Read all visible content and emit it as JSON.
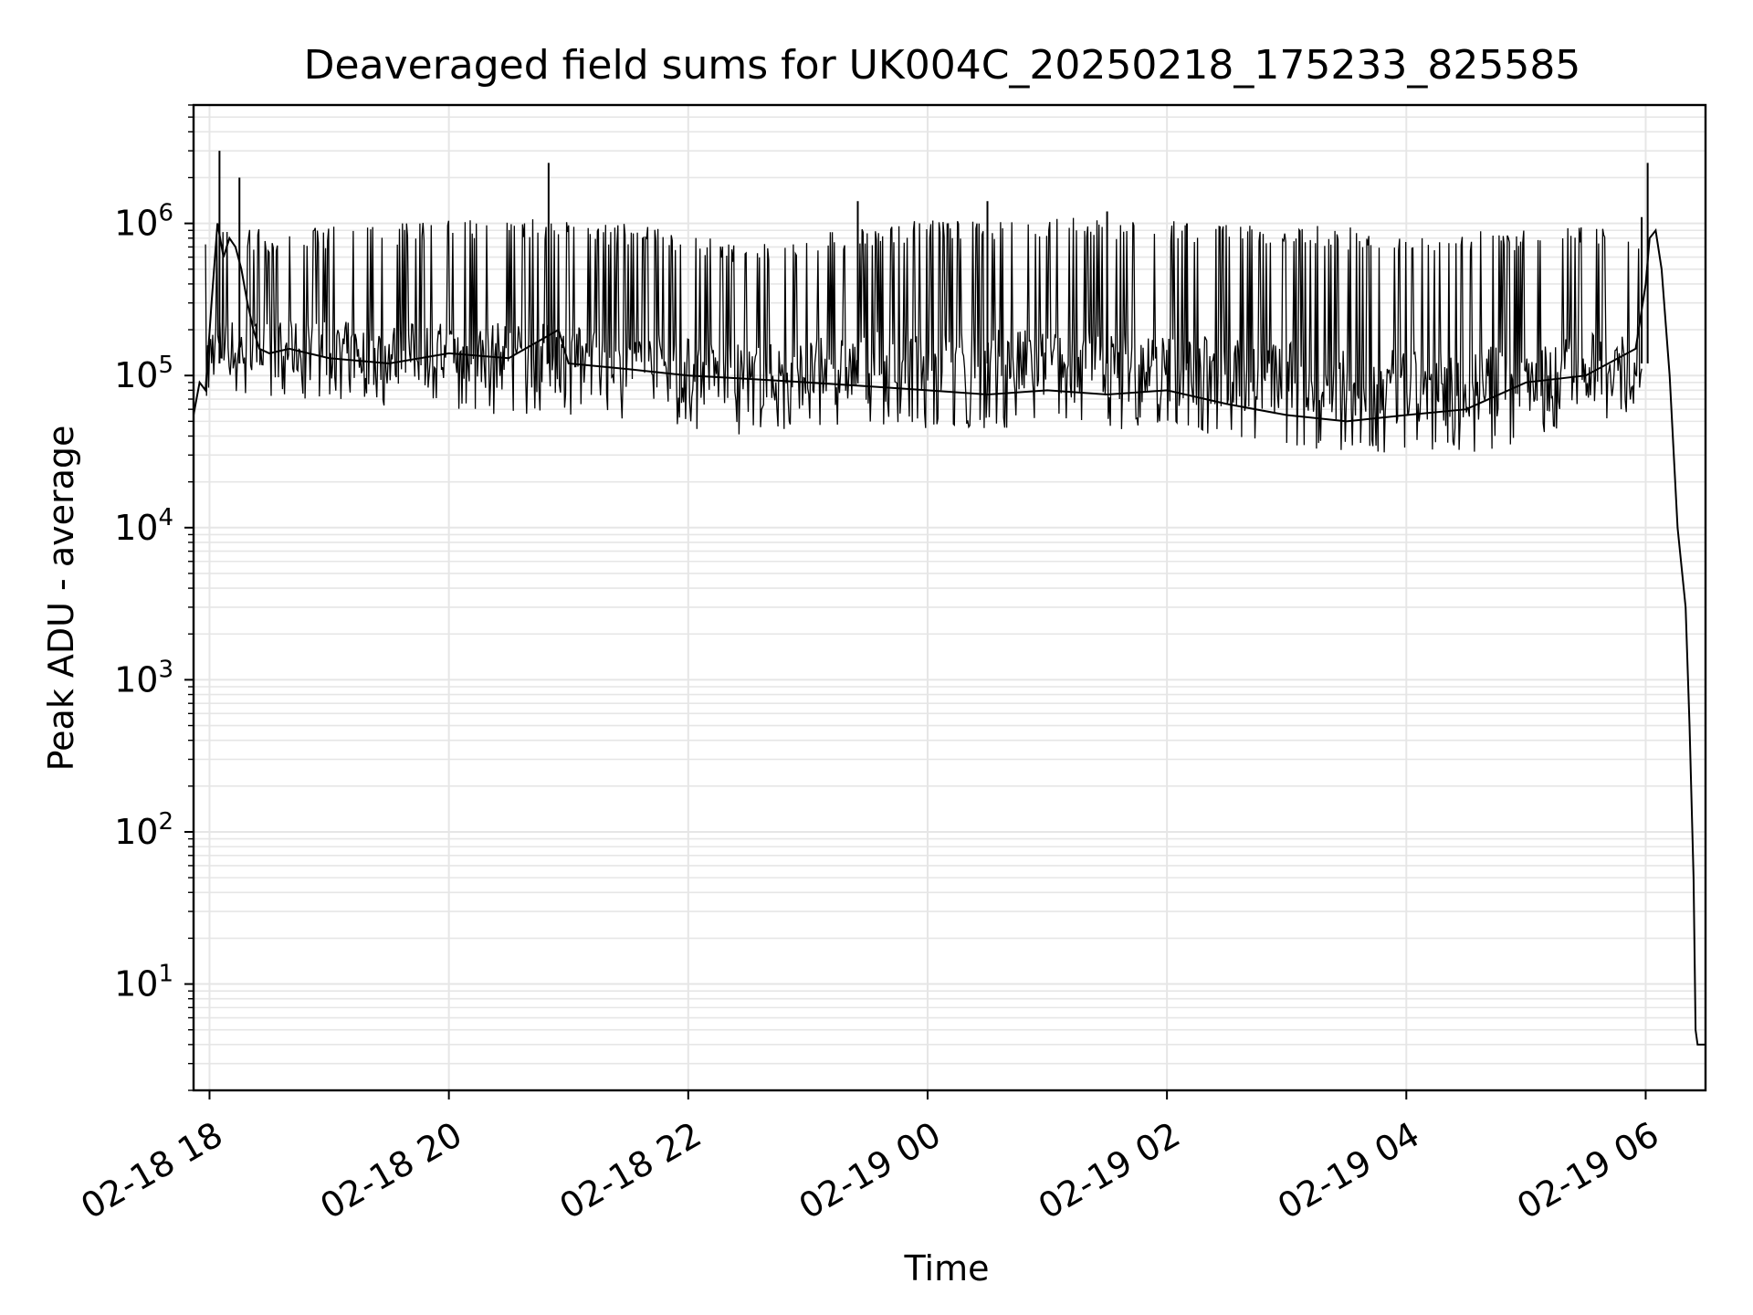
{
  "chart_data": {
    "type": "line",
    "title": "Deaveraged field sums for UK004C_20250218_175233_825585",
    "xlabel": "Time",
    "ylabel": "Peak ADU - average",
    "yscale": "log",
    "ylim": [
      2,
      6000000
    ],
    "xlim": [
      "2025-02-18T17:52",
      "2025-02-19T06:30"
    ],
    "x_ticks": [
      "02-18 18",
      "02-18 20",
      "02-18 22",
      "02-19 00",
      "02-19 02",
      "02-19 04",
      "02-19 06"
    ],
    "y_ticks": [
      {
        "base": "10",
        "exp": "1",
        "value": 10
      },
      {
        "base": "10",
        "exp": "2",
        "value": 100
      },
      {
        "base": "10",
        "exp": "3",
        "value": 1000
      },
      {
        "base": "10",
        "exp": "4",
        "value": 10000
      },
      {
        "base": "10",
        "exp": "5",
        "value": 100000
      },
      {
        "base": "10",
        "exp": "6",
        "value": 1000000
      }
    ],
    "grid": true,
    "line_color": "#000000",
    "grid_color": "#e6e6e6",
    "series": [
      {
        "x": [
          "2025-02-18T17:52",
          "2025-02-18T17:55",
          "2025-02-18T17:58",
          "2025-02-18T18:01",
          "2025-02-18T18:04",
          "2025-02-18T18:07",
          "2025-02-18T18:10",
          "2025-02-18T18:13",
          "2025-02-18T18:16",
          "2025-02-18T18:19",
          "2025-02-18T18:22",
          "2025-02-18T18:25",
          "2025-02-18T18:30",
          "2025-02-18T18:40",
          "2025-02-18T19:00",
          "2025-02-18T19:30",
          "2025-02-18T20:00",
          "2025-02-18T20:30",
          "2025-02-18T20:55",
          "2025-02-18T21:00",
          "2025-02-18T21:30",
          "2025-02-18T22:00",
          "2025-02-18T22:30",
          "2025-02-18T23:00",
          "2025-02-18T23:30",
          "2025-02-19T00:00",
          "2025-02-19T00:30",
          "2025-02-19T01:00",
          "2025-02-19T01:30",
          "2025-02-19T02:00",
          "2025-02-19T02:30",
          "2025-02-19T03:00",
          "2025-02-19T03:30",
          "2025-02-19T04:00",
          "2025-02-19T04:30",
          "2025-02-19T05:00",
          "2025-02-19T05:30",
          "2025-02-19T05:55",
          "2025-02-19T06:00",
          "2025-02-19T06:02",
          "2025-02-19T06:05",
          "2025-02-19T06:08",
          "2025-02-19T06:12",
          "2025-02-19T06:16",
          "2025-02-19T06:20",
          "2025-02-19T06:22",
          "2025-02-19T06:24",
          "2025-02-19T06:25",
          "2025-02-19T06:26",
          "2025-02-19T06:28",
          "2025-02-19T06:30"
        ],
        "y": [
          55000,
          90000,
          80000,
          300000,
          1000000,
          600000,
          800000,
          700000,
          500000,
          300000,
          200000,
          150000,
          140000,
          150000,
          130000,
          120000,
          140000,
          130000,
          200000,
          120000,
          110000,
          100000,
          95000,
          90000,
          85000,
          80000,
          75000,
          80000,
          75000,
          80000,
          65000,
          55000,
          50000,
          55000,
          60000,
          90000,
          100000,
          150000,
          400000,
          800000,
          900000,
          500000,
          100000,
          10000,
          3000,
          500,
          50,
          5,
          4,
          4,
          4
        ]
      }
    ],
    "peaks": {
      "x": [
        "2025-02-18T18:05",
        "2025-02-18T18:15",
        "2025-02-18T20:50",
        "2025-02-18T23:25",
        "2025-02-19T00:30",
        "2025-02-19T01:30",
        "2025-02-19T02:10",
        "2025-02-19T05:58",
        "2025-02-19T06:01"
      ],
      "y": [
        3000000,
        2000000,
        2500000,
        1400000,
        1400000,
        1200000,
        1000000,
        1100000,
        2500000
      ]
    },
    "noise_band": {
      "x": [
        "2025-02-18T17:58",
        "2025-02-18T18:30",
        "2025-02-18T19:30",
        "2025-02-18T20:30",
        "2025-02-18T21:30",
        "2025-02-18T22:30",
        "2025-02-18T23:30",
        "2025-02-19T00:30",
        "2025-02-19T01:30",
        "2025-02-19T02:30",
        "2025-02-19T03:30",
        "2025-02-19T04:30",
        "2025-02-19T05:30",
        "2025-02-19T05:58"
      ],
      "low": [
        70000,
        70000,
        60000,
        55000,
        50000,
        40000,
        45000,
        45000,
        45000,
        40000,
        30000,
        30000,
        45000,
        60000
      ],
      "high": [
        1000000,
        900000,
        1000000,
        1100000,
        1000000,
        750000,
        1000000,
        1100000,
        1100000,
        1000000,
        950000,
        900000,
        950000,
        900000
      ]
    }
  }
}
